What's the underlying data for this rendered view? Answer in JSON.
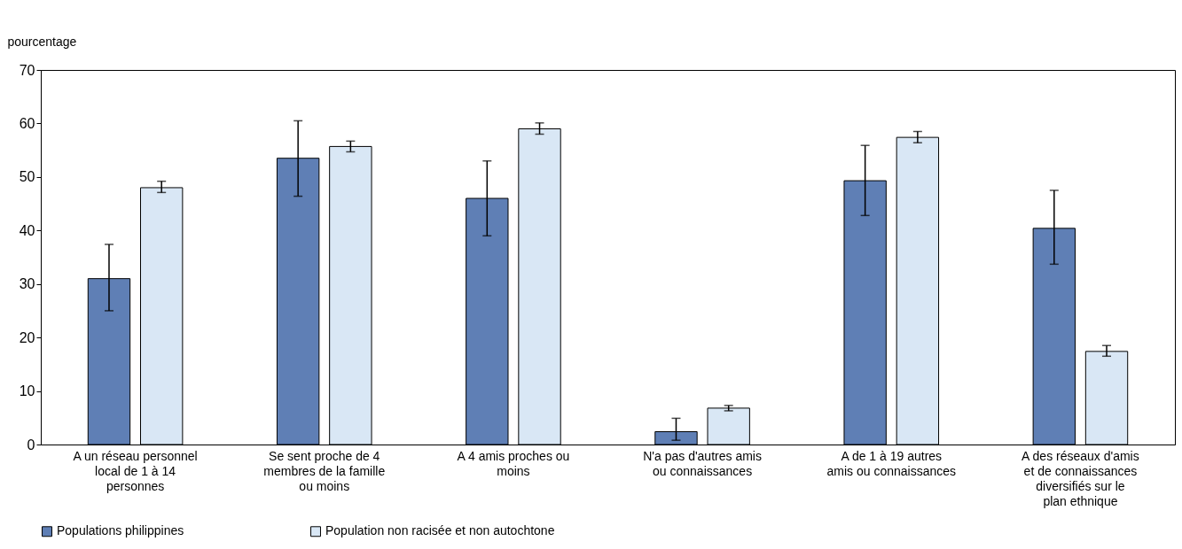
{
  "chart_data": {
    "type": "bar",
    "ylabel": "pourcentage",
    "categories": [
      "A un réseau personnel local de 1 à 14 personnes",
      "Se sent proche de 4 membres de la famille ou moins",
      "A 4 amis proches ou moins",
      "N'a pas d'autres amis ou connaissances",
      "A de 1 à 19 autres amis ou connaissances",
      "A des réseaux d'amis et de connaissances diversifiés sur le plan ethnique"
    ],
    "series": [
      {
        "name": "Populations philippines",
        "color": "#5f7fb5",
        "values": [
          31,
          53.5,
          46,
          2.4,
          49.3,
          40.4
        ],
        "errors": [
          [
            25,
            37.4
          ],
          [
            46.4,
            60.5
          ],
          [
            39,
            53
          ],
          [
            0.8,
            4.9
          ],
          [
            42.8,
            55.9
          ],
          [
            33.7,
            47.5
          ]
        ]
      },
      {
        "name": "Population non racisée et non autochtone",
        "color": "#d9e7f5",
        "values": [
          48,
          55.7,
          59,
          6.8,
          57.4,
          17.4
        ],
        "errors": [
          [
            47.1,
            49.2
          ],
          [
            54.7,
            56.7
          ],
          [
            58,
            60.1
          ],
          [
            6.3,
            7.3
          ],
          [
            56.4,
            58.5
          ],
          [
            16.5,
            18.5
          ]
        ]
      }
    ],
    "ylim": [
      0,
      70
    ],
    "yticks": [
      0,
      10,
      20,
      30,
      40,
      50,
      60,
      70
    ],
    "grid": false,
    "legend": "bottom"
  }
}
